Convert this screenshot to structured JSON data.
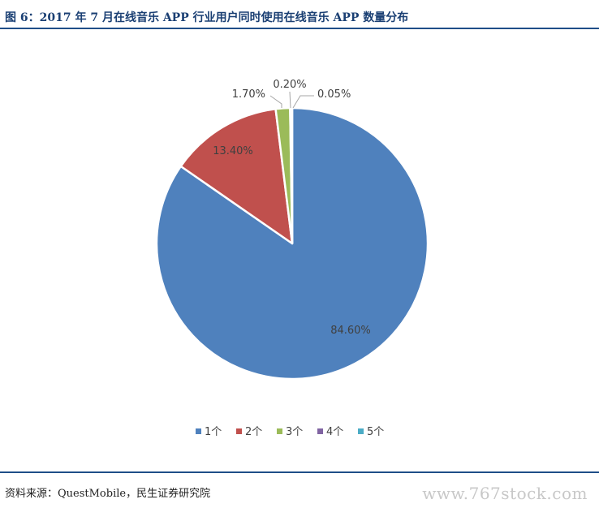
{
  "figure": {
    "title": "图 6：2017 年 7 月在线音乐 APP 行业用户同时使用在线音乐 APP 数量分布",
    "source": "资料来源：QuestMobile，民生证券研究院",
    "watermark": "www.767stock.com"
  },
  "chart_data": {
    "type": "pie",
    "slices": [
      {
        "label": "1个",
        "value": 84.6,
        "display": "84.60%",
        "color": "#4F81BD"
      },
      {
        "label": "2个",
        "value": 13.4,
        "display": "13.40%",
        "color": "#C0504D"
      },
      {
        "label": "3个",
        "value": 1.7,
        "display": "1.70%",
        "color": "#9BBB59"
      },
      {
        "label": "4个",
        "value": 0.2,
        "display": "0.20%",
        "color": "#8064A2"
      },
      {
        "label": "5个",
        "value": 0.05,
        "display": "0.05%",
        "color": "#4BACC6"
      }
    ],
    "legend_position": "bottom"
  }
}
